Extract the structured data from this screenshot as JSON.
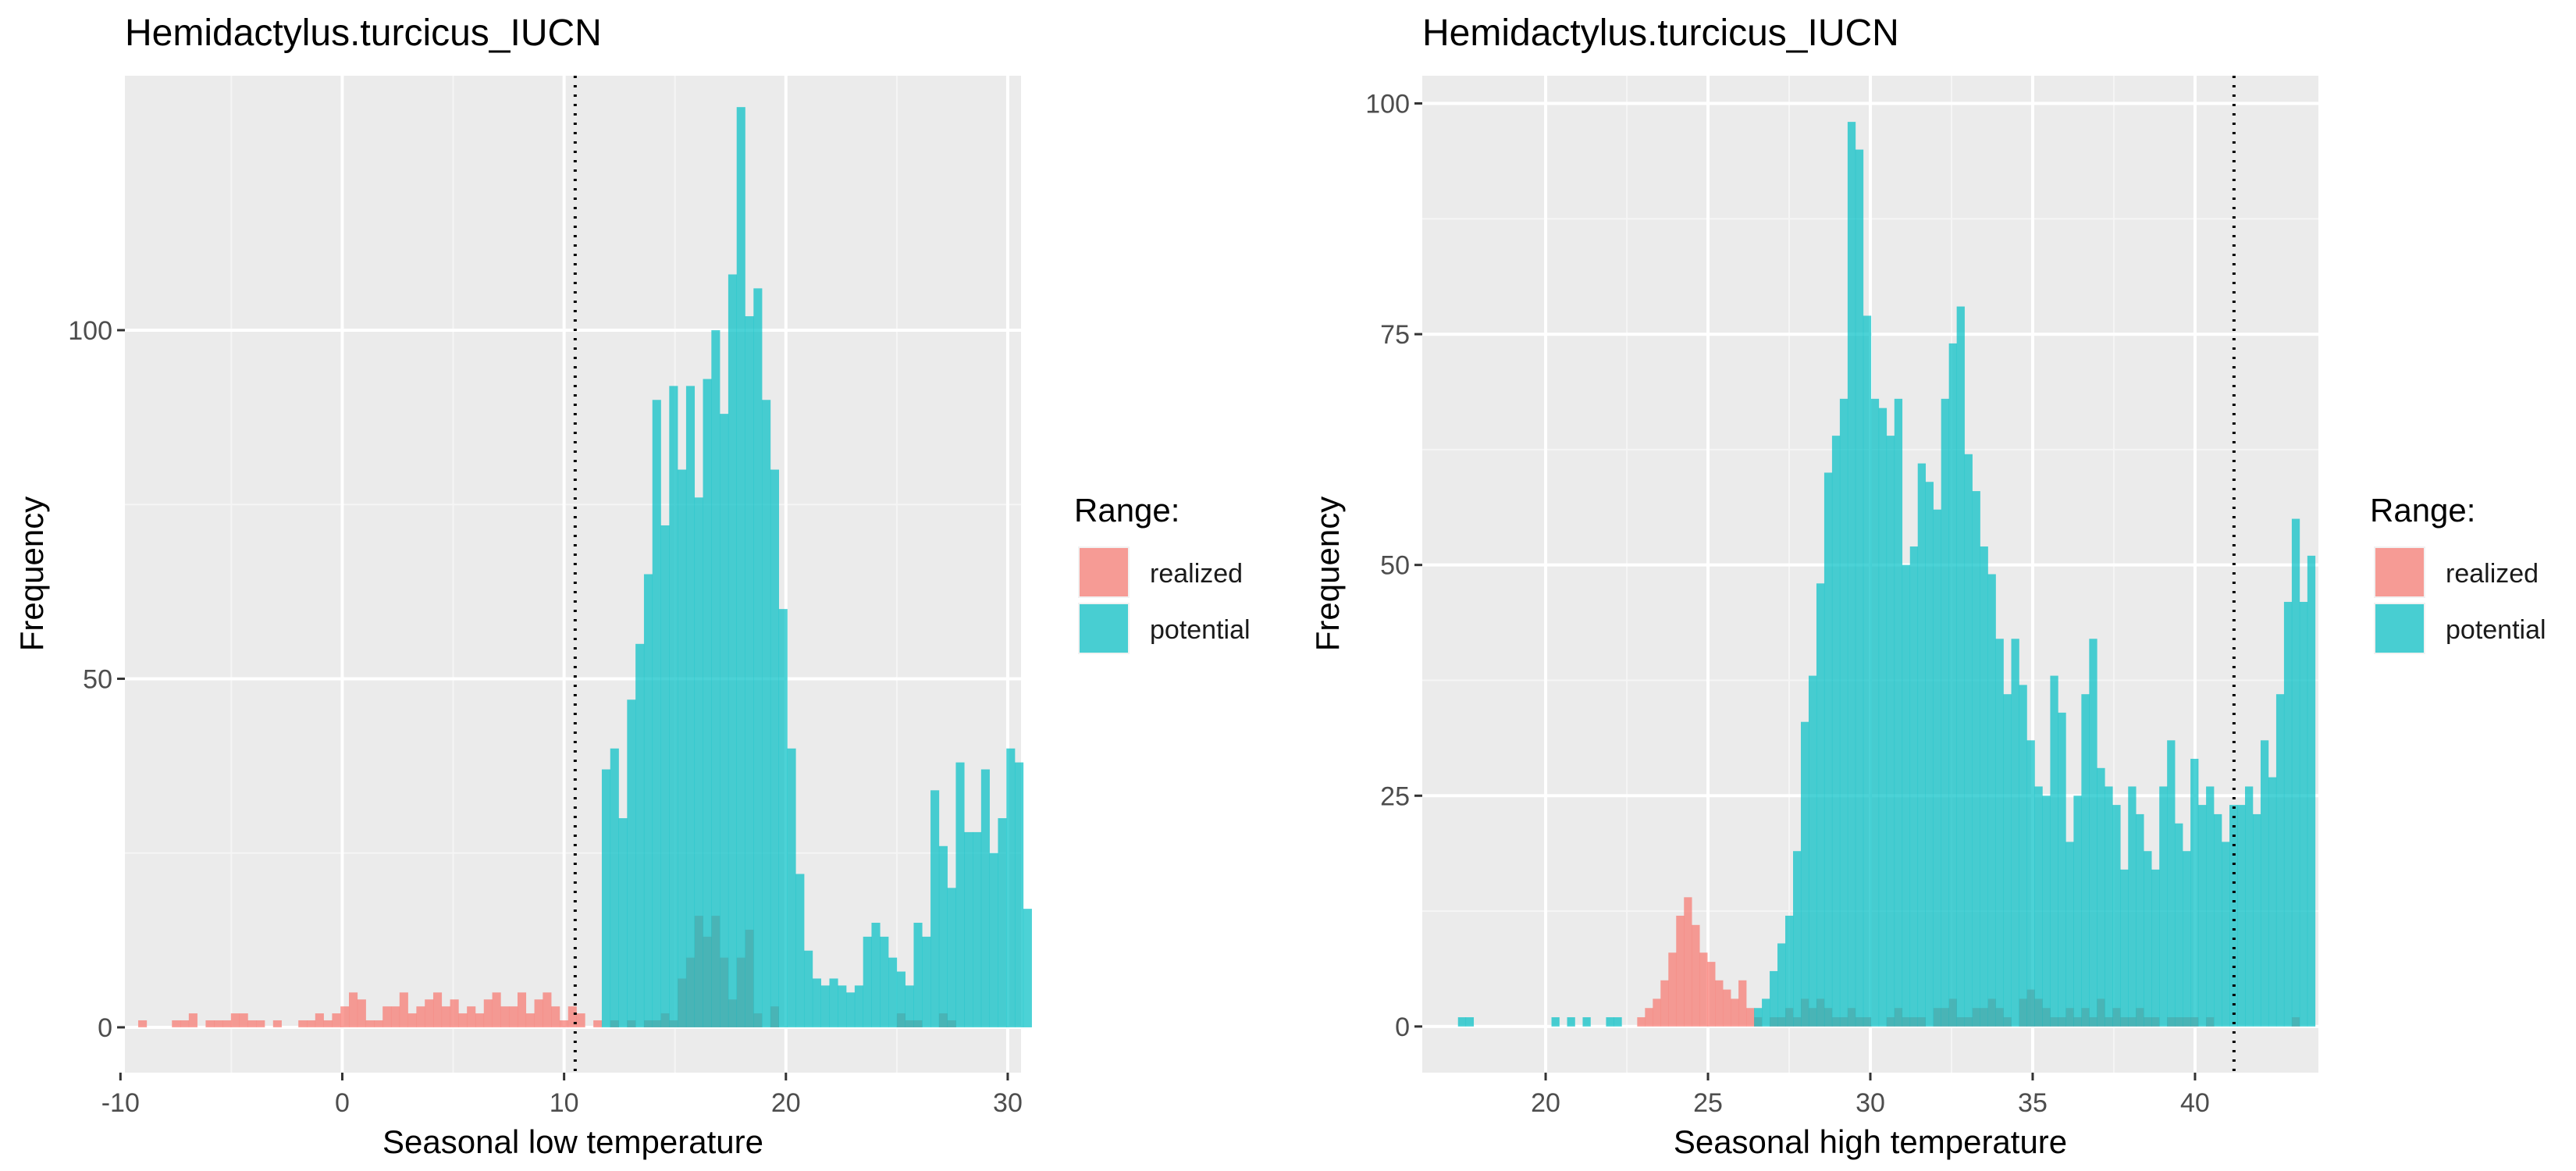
{
  "chart_data": [
    {
      "type": "histogram",
      "title": "Hemidactylus.turcicus_IUCN",
      "xlabel": "Seasonal low temperature",
      "ylabel": "Frequency",
      "xlim": [
        -9.8,
        30.6
      ],
      "ylim": [
        -6.5,
        136.5
      ],
      "x_ticks": [
        -10,
        0,
        10,
        20,
        30
      ],
      "x_tick_labels": [
        "-10",
        "0",
        "10",
        "20",
        "30"
      ],
      "y_ticks": [
        0,
        50,
        100
      ],
      "y_tick_labels": [
        "0",
        "50",
        "100"
      ],
      "grid": true,
      "threshold_line": 10.5,
      "legend": {
        "title": "Range:",
        "placement": "right",
        "entries": [
          {
            "label": "realized",
            "color": "#F8766D"
          },
          {
            "label": "potential",
            "color": "#00BFC4"
          }
        ]
      },
      "bin_start": -9.2,
      "bin_width": 0.38,
      "series": [
        {
          "name": "realized",
          "color": "#F8766D",
          "values": [
            1,
            0,
            0,
            0,
            1,
            1,
            2,
            0,
            1,
            1,
            1,
            2,
            2,
            1,
            1,
            0,
            1,
            0,
            0,
            1,
            1,
            2,
            1,
            2,
            3,
            5,
            4,
            1,
            1,
            3,
            3,
            5,
            2,
            3,
            4,
            5,
            3,
            4,
            2,
            3,
            2,
            4,
            5,
            3,
            3,
            5,
            2,
            4,
            5,
            3,
            1,
            3,
            2,
            0,
            1,
            0,
            1,
            0,
            1,
            0,
            1,
            1,
            2,
            1,
            7,
            10,
            16,
            13,
            16,
            10,
            4,
            10,
            14,
            2,
            0,
            3,
            0,
            0,
            0,
            0,
            0,
            0,
            0,
            0,
            0,
            0,
            0,
            0,
            0,
            0,
            2,
            1,
            1,
            0,
            0,
            2,
            1,
            0,
            0,
            0,
            0,
            0,
            0,
            0,
            0,
            0
          ]
        },
        {
          "name": "potential",
          "color": "#00BFC4",
          "values": [
            0,
            0,
            0,
            0,
            0,
            0,
            0,
            0,
            0,
            0,
            0,
            0,
            0,
            0,
            0,
            0,
            0,
            0,
            0,
            0,
            0,
            0,
            0,
            0,
            0,
            0,
            0,
            0,
            0,
            0,
            0,
            0,
            0,
            0,
            0,
            0,
            0,
            0,
            0,
            0,
            0,
            0,
            0,
            0,
            0,
            0,
            0,
            0,
            0,
            0,
            0,
            0,
            0,
            0,
            0,
            37,
            40,
            30,
            47,
            55,
            65,
            90,
            72,
            92,
            80,
            92,
            76,
            93,
            100,
            88,
            108,
            132,
            102,
            106,
            90,
            80,
            60,
            40,
            22,
            11,
            7,
            6,
            7,
            6,
            5,
            6,
            13,
            15,
            13,
            10,
            8,
            6,
            15,
            13,
            34,
            26,
            20,
            38,
            28,
            28,
            37,
            25,
            30,
            40,
            38,
            17
          ]
        }
      ]
    },
    {
      "type": "histogram",
      "title": "Hemidactylus.turcicus_IUCN",
      "xlabel": "Seasonal high temperature",
      "ylabel": "Frequency",
      "xlim": [
        16.2,
        43.8
      ],
      "ylim": [
        -5,
        103
      ],
      "x_ticks": [
        20,
        25,
        30,
        35,
        40
      ],
      "x_tick_labels": [
        "20",
        "25",
        "30",
        "35",
        "40"
      ],
      "y_ticks": [
        0,
        25,
        50,
        75,
        100
      ],
      "y_tick_labels": [
        "0",
        "25",
        "50",
        "75",
        "100"
      ],
      "grid": true,
      "threshold_line": 41.2,
      "legend": {
        "title": "Range:",
        "placement": "right",
        "entries": [
          {
            "label": "realized",
            "color": "#F8766D"
          },
          {
            "label": "potential",
            "color": "#00BFC4"
          }
        ]
      },
      "bin_start": 17.3,
      "bin_width": 0.24,
      "series": [
        {
          "name": "realized",
          "color": "#F8766D",
          "values": [
            0,
            0,
            0,
            0,
            0,
            0,
            0,
            0,
            0,
            0,
            0,
            0,
            0,
            0,
            0,
            0,
            0,
            0,
            0,
            0,
            0,
            0,
            0,
            1,
            2,
            3,
            5,
            8,
            12,
            14,
            11,
            8,
            7,
            5,
            4,
            3,
            5,
            2,
            1,
            0,
            1,
            1,
            2,
            1,
            3,
            2,
            3,
            2,
            1,
            1,
            2,
            1,
            1,
            0,
            0,
            1,
            2,
            1,
            1,
            1,
            0,
            2,
            2,
            3,
            1,
            1,
            2,
            2,
            3,
            2,
            1,
            0,
            3,
            4,
            3,
            2,
            1,
            1,
            2,
            1,
            2,
            1,
            3,
            1,
            2,
            1,
            1,
            2,
            1,
            1,
            0,
            1,
            1,
            1,
            1,
            0,
            1,
            0,
            0,
            0,
            0,
            0,
            0,
            0,
            0,
            0,
            0,
            1
          ]
        },
        {
          "name": "potential",
          "color": "#00BFC4",
          "values": [
            1,
            1,
            0,
            0,
            0,
            0,
            0,
            0,
            0,
            0,
            0,
            0,
            1,
            0,
            1,
            0,
            1,
            0,
            0,
            1,
            1,
            0,
            0,
            0,
            0,
            0,
            0,
            0,
            0,
            0,
            0,
            0,
            0,
            0,
            0,
            0,
            0,
            0,
            2,
            3,
            6,
            9,
            12,
            19,
            33,
            38,
            48,
            60,
            64,
            68,
            98,
            95,
            77,
            68,
            67,
            64,
            68,
            50,
            52,
            61,
            59,
            56,
            68,
            74,
            78,
            62,
            58,
            52,
            49,
            42,
            36,
            42,
            37,
            31,
            26,
            25,
            38,
            34,
            20,
            25,
            36,
            42,
            28,
            26,
            24,
            17,
            26,
            23,
            19,
            17,
            26,
            31,
            22,
            19,
            29,
            24,
            26,
            23,
            20,
            24,
            24,
            26,
            23,
            31,
            27,
            36,
            46,
            55,
            46,
            51
          ]
        }
      ]
    }
  ]
}
